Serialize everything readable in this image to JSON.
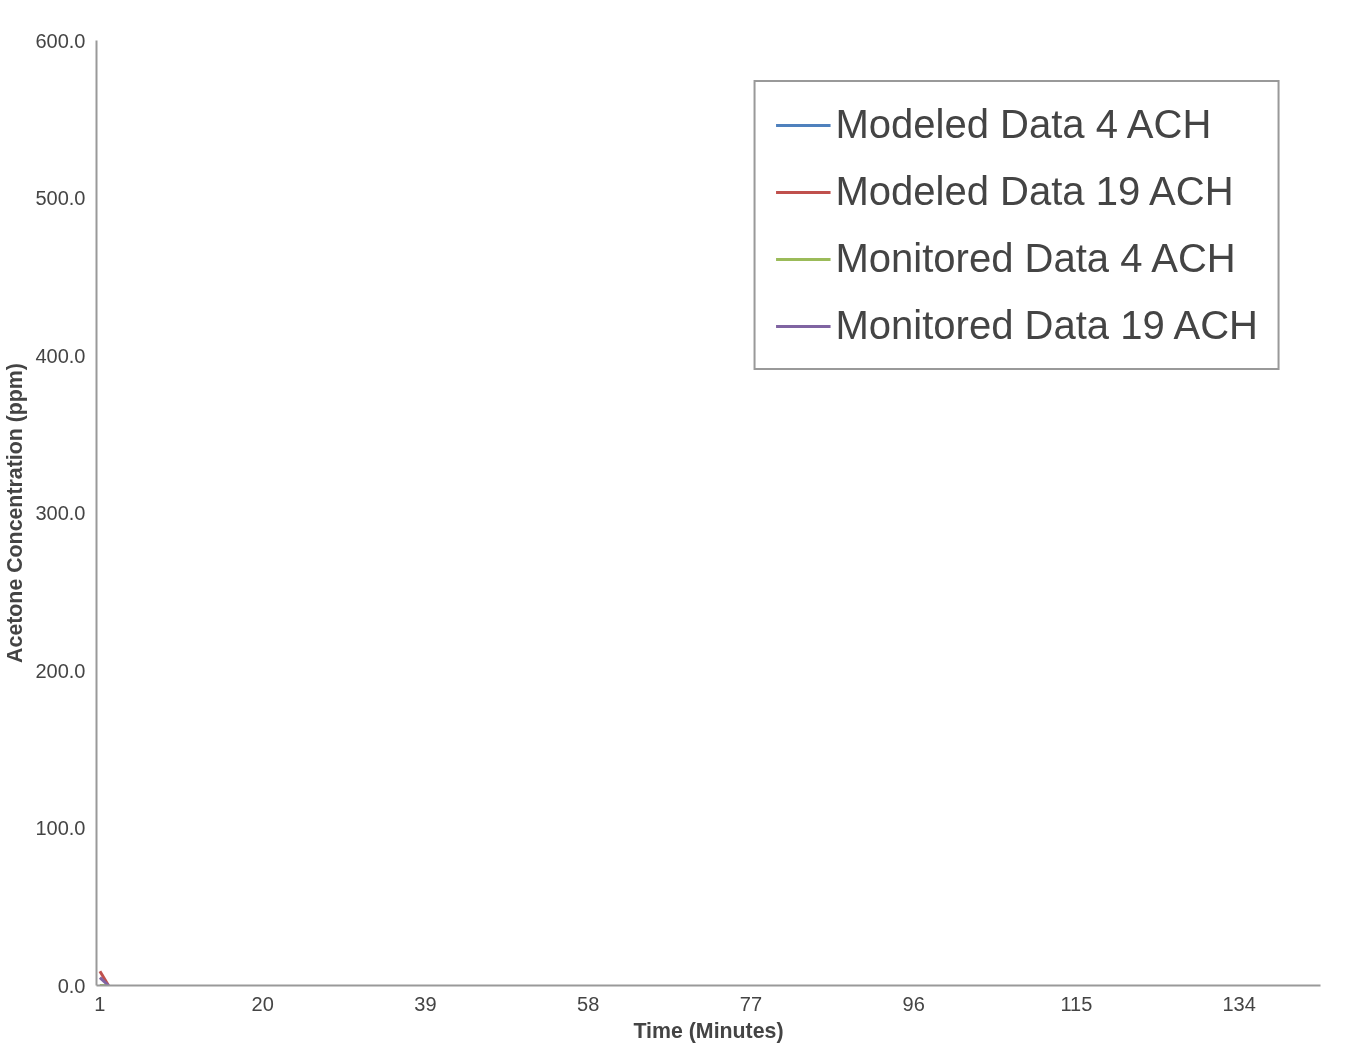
{
  "chart_data": {
    "type": "line",
    "xlabel": "Time (Minutes)",
    "ylabel": "Acetone Concentration (ppm)",
    "x": [
      1,
      2
    ],
    "xlim": [
      0.6,
      143.5
    ],
    "xticks": [
      1,
      20,
      39,
      58,
      77,
      96,
      115,
      134
    ],
    "ylim": [
      0,
      600
    ],
    "yticks": [
      {
        "value": 0,
        "label": "0.0"
      },
      {
        "value": 100,
        "label": "100.0"
      },
      {
        "value": 200,
        "label": "200.0"
      },
      {
        "value": 300,
        "label": "300.0"
      },
      {
        "value": 400,
        "label": "400.0"
      },
      {
        "value": 500,
        "label": "500.0"
      },
      {
        "value": 600,
        "label": "600.0"
      }
    ],
    "series": [
      {
        "name": "Modeled Data 4 ACH",
        "color": "#4f81bd",
        "values": [
          null,
          null
        ]
      },
      {
        "name": "Modeled Data 19 ACH",
        "color": "#c0504d",
        "values": [
          9,
          0
        ]
      },
      {
        "name": "Monitored Data 4 ACH",
        "color": "#9bbb59",
        "values": [
          null,
          null
        ]
      },
      {
        "name": "Monitored Data 19 ACH",
        "color": "#8064a2",
        "values": [
          5,
          0
        ]
      }
    ],
    "grid": false,
    "legend": "top right",
    "marker": "none",
    "line_style": "solid"
  }
}
